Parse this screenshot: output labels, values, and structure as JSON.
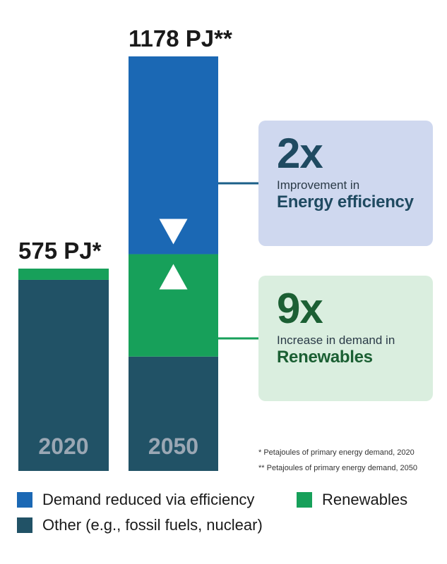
{
  "chart_data": {
    "type": "bar",
    "stacked": true,
    "categories": [
      "2020",
      "2050"
    ],
    "series": [
      {
        "key": "other",
        "name": "Other (e.g., fossil fuels, nuclear)",
        "color": "#215266",
        "values": [
          543,
          325
        ]
      },
      {
        "key": "renewables",
        "name": "Renewables",
        "color": "#17a05a",
        "values": [
          32,
          291
        ]
      },
      {
        "key": "efficiency",
        "name": "Demand reduced via efficiency",
        "color": "#1b68b4",
        "values": [
          0,
          562
        ]
      }
    ],
    "totals": [
      "575 PJ*",
      "1178 PJ**"
    ],
    "ylim": [
      0,
      1178
    ],
    "title": "",
    "xlabel": "",
    "ylabel": ""
  },
  "markers": {
    "down_arrow_icon": "triangle-down-icon",
    "up_arrow_icon": "triangle-up-icon"
  },
  "callouts": {
    "efficiency": {
      "big": "2x",
      "line1": "Improvement in",
      "line2": "Energy efficiency"
    },
    "renewables": {
      "big": "9x",
      "line1": "Increase in demand in",
      "line2": "Renewables"
    }
  },
  "footnotes": {
    "note1": "* Petajoules of primary energy demand, 2020",
    "note2": "** Petajoules of primary energy demand, 2050"
  },
  "legend": {
    "efficiency": "Demand reduced via efficiency",
    "renewables": "Renewables",
    "other": "Other (e.g., fossil fuels, nuclear)"
  },
  "colors": {
    "connector": "#1b5f88",
    "connector_green": "#17a05a"
  }
}
